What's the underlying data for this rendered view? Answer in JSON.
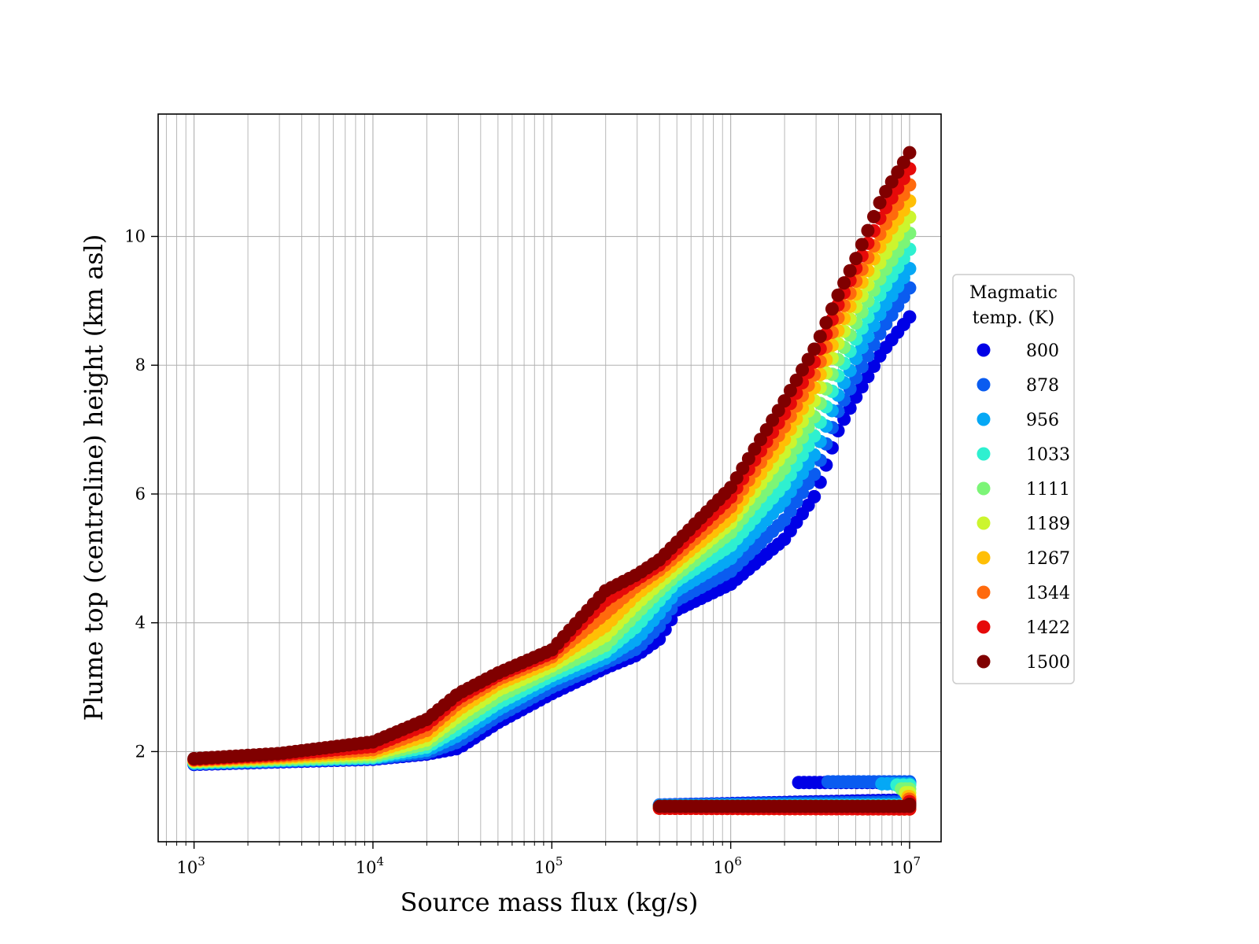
{
  "chart_data": {
    "type": "scatter",
    "title": "",
    "xlabel": "Source mass flux (kg/s)",
    "ylabel": "Plume top (centreline) height (km asl)",
    "xscale": "log",
    "xlim": [
      630,
      15000000
    ],
    "ylim": [
      0.6,
      11.9
    ],
    "grid": true,
    "x_ticks": [
      {
        "value": 1000,
        "base": "10",
        "exp": "3"
      },
      {
        "value": 10000,
        "base": "10",
        "exp": "4"
      },
      {
        "value": 100000,
        "base": "10",
        "exp": "5"
      },
      {
        "value": 1000000,
        "base": "10",
        "exp": "6"
      },
      {
        "value": 10000000,
        "base": "10",
        "exp": "7"
      }
    ],
    "y_ticks": [
      2,
      4,
      6,
      8,
      10
    ],
    "legend": {
      "title_line1": "Magmatic",
      "title_line2": "temp. (K)",
      "placement": "right-outside"
    },
    "lower_branch_x": [
      400000,
      10000000
    ],
    "series": [
      {
        "name": "800",
        "color": "#0000e6",
        "points": [
          [
            1000,
            1.8
          ],
          [
            3000,
            1.84
          ],
          [
            10000,
            1.88
          ],
          [
            20000,
            1.96
          ],
          [
            30000,
            2.05
          ],
          [
            50000,
            2.45
          ],
          [
            100000,
            2.9
          ],
          [
            200000,
            3.3
          ],
          [
            300000,
            3.5
          ],
          [
            400000,
            3.75
          ],
          [
            500000,
            4.2
          ],
          [
            1000000,
            4.6
          ],
          [
            2000000,
            5.3
          ],
          [
            3000000,
            6.0
          ],
          [
            4000000,
            7.0
          ],
          [
            5000000,
            7.5
          ],
          [
            7000000,
            8.2
          ],
          [
            10000000,
            8.75
          ]
        ],
        "lower_y": [
          1.17,
          1.25
        ],
        "lower_upper_start": 2400000,
        "lower_upper_y": 1.52
      },
      {
        "name": "878",
        "color": "#0a5cf0",
        "points": [
          [
            1000,
            1.81
          ],
          [
            3000,
            1.85
          ],
          [
            10000,
            1.89
          ],
          [
            20000,
            1.98
          ],
          [
            30000,
            2.15
          ],
          [
            50000,
            2.55
          ],
          [
            100000,
            3.0
          ],
          [
            200000,
            3.38
          ],
          [
            300000,
            3.6
          ],
          [
            400000,
            3.95
          ],
          [
            500000,
            4.35
          ],
          [
            1000000,
            4.8
          ],
          [
            2000000,
            5.6
          ],
          [
            3000000,
            6.35
          ],
          [
            4000000,
            7.3
          ],
          [
            5000000,
            7.8
          ],
          [
            7000000,
            8.55
          ],
          [
            10000000,
            9.2
          ]
        ],
        "lower_y": [
          1.17,
          1.22
        ],
        "lower_upper_start": 3500000,
        "lower_upper_y": 1.53
      },
      {
        "name": "956",
        "color": "#05a8f5",
        "points": [
          [
            1000,
            1.82
          ],
          [
            3000,
            1.86
          ],
          [
            10000,
            1.9
          ],
          [
            20000,
            2.02
          ],
          [
            30000,
            2.25
          ],
          [
            50000,
            2.65
          ],
          [
            100000,
            3.1
          ],
          [
            200000,
            3.45
          ],
          [
            300000,
            3.75
          ],
          [
            400000,
            4.15
          ],
          [
            500000,
            4.5
          ],
          [
            1000000,
            5.0
          ],
          [
            2000000,
            5.9
          ],
          [
            3000000,
            6.65
          ],
          [
            4000000,
            7.55
          ],
          [
            5000000,
            8.1
          ],
          [
            7000000,
            8.85
          ],
          [
            10000000,
            9.5
          ]
        ],
        "lower_y": [
          1.16,
          1.18
        ],
        "lower_upper_start": 7000000,
        "lower_upper_y": 1.5
      },
      {
        "name": "1033",
        "color": "#2ef0d0",
        "points": [
          [
            1000,
            1.83
          ],
          [
            3000,
            1.87
          ],
          [
            10000,
            1.91
          ],
          [
            20000,
            2.07
          ],
          [
            30000,
            2.35
          ],
          [
            50000,
            2.75
          ],
          [
            100000,
            3.18
          ],
          [
            200000,
            3.55
          ],
          [
            300000,
            3.95
          ],
          [
            400000,
            4.35
          ],
          [
            500000,
            4.65
          ],
          [
            1000000,
            5.2
          ],
          [
            2000000,
            6.15
          ],
          [
            3000000,
            6.95
          ],
          [
            4000000,
            7.85
          ],
          [
            5000000,
            8.4
          ],
          [
            7000000,
            9.15
          ],
          [
            10000000,
            9.8
          ]
        ],
        "lower_y": [
          1.15,
          1.16
        ],
        "lower_upper_start": 8500000,
        "lower_upper_y": 1.48
      },
      {
        "name": "1111",
        "color": "#7cf577",
        "points": [
          [
            1000,
            1.84
          ],
          [
            3000,
            1.88
          ],
          [
            10000,
            1.93
          ],
          [
            20000,
            2.12
          ],
          [
            30000,
            2.45
          ],
          [
            50000,
            2.85
          ],
          [
            100000,
            3.26
          ],
          [
            200000,
            3.65
          ],
          [
            300000,
            4.15
          ],
          [
            400000,
            4.5
          ],
          [
            500000,
            4.75
          ],
          [
            1000000,
            5.4
          ],
          [
            2000000,
            6.4
          ],
          [
            3000000,
            7.25
          ],
          [
            4000000,
            8.1
          ],
          [
            5000000,
            8.65
          ],
          [
            7000000,
            9.4
          ],
          [
            10000000,
            10.05
          ]
        ],
        "lower_y": [
          1.14,
          1.14
        ],
        "lower_upper_start": 9000000,
        "lower_upper_y": 1.42
      },
      {
        "name": "1189",
        "color": "#ccf52e",
        "points": [
          [
            1000,
            1.85
          ],
          [
            3000,
            1.9
          ],
          [
            10000,
            1.96
          ],
          [
            20000,
            2.18
          ],
          [
            30000,
            2.55
          ],
          [
            50000,
            2.95
          ],
          [
            100000,
            3.33
          ],
          [
            200000,
            3.8
          ],
          [
            300000,
            4.3
          ],
          [
            400000,
            4.62
          ],
          [
            500000,
            4.85
          ],
          [
            1000000,
            5.55
          ],
          [
            2000000,
            6.65
          ],
          [
            3000000,
            7.5
          ],
          [
            4000000,
            8.35
          ],
          [
            5000000,
            8.9
          ],
          [
            7000000,
            9.65
          ],
          [
            10000000,
            10.3
          ]
        ],
        "lower_y": [
          1.13,
          1.12
        ],
        "lower_upper_start": 9500000,
        "lower_upper_y": 1.36
      },
      {
        "name": "1267",
        "color": "#ffbf05",
        "points": [
          [
            1000,
            1.86
          ],
          [
            3000,
            1.91
          ],
          [
            10000,
            1.99
          ],
          [
            20000,
            2.25
          ],
          [
            30000,
            2.65
          ],
          [
            50000,
            3.05
          ],
          [
            100000,
            3.4
          ],
          [
            200000,
            3.95
          ],
          [
            300000,
            4.45
          ],
          [
            400000,
            4.72
          ],
          [
            500000,
            4.95
          ],
          [
            1000000,
            5.65
          ],
          [
            2000000,
            6.85
          ],
          [
            3000000,
            7.7
          ],
          [
            4000000,
            8.55
          ],
          [
            5000000,
            9.1
          ],
          [
            7000000,
            9.9
          ],
          [
            10000000,
            10.55
          ]
        ],
        "lower_y": [
          1.12,
          1.11
        ],
        "lower_upper_start": 9800000,
        "lower_upper_y": 1.3
      },
      {
        "name": "1344",
        "color": "#ff6a0d",
        "points": [
          [
            1000,
            1.87
          ],
          [
            3000,
            1.93
          ],
          [
            10000,
            2.03
          ],
          [
            20000,
            2.33
          ],
          [
            30000,
            2.75
          ],
          [
            50000,
            3.12
          ],
          [
            100000,
            3.47
          ],
          [
            200000,
            4.15
          ],
          [
            300000,
            4.58
          ],
          [
            400000,
            4.82
          ],
          [
            500000,
            5.05
          ],
          [
            1000000,
            5.8
          ],
          [
            2000000,
            7.05
          ],
          [
            3000000,
            7.9
          ],
          [
            4000000,
            8.75
          ],
          [
            5000000,
            9.3
          ],
          [
            7000000,
            10.1
          ],
          [
            10000000,
            10.8
          ]
        ],
        "lower_y": [
          1.12,
          1.11
        ],
        "lower_upper_start": 9900000,
        "lower_upper_y": 1.26
      },
      {
        "name": "1422",
        "color": "#e60a0a",
        "points": [
          [
            1000,
            1.88
          ],
          [
            3000,
            1.95
          ],
          [
            10000,
            2.08
          ],
          [
            20000,
            2.42
          ],
          [
            30000,
            2.83
          ],
          [
            50000,
            3.18
          ],
          [
            100000,
            3.53
          ],
          [
            200000,
            4.35
          ],
          [
            300000,
            4.68
          ],
          [
            400000,
            4.9
          ],
          [
            500000,
            5.15
          ],
          [
            1000000,
            5.95
          ],
          [
            2000000,
            7.25
          ],
          [
            3000000,
            8.1
          ],
          [
            4000000,
            8.95
          ],
          [
            5000000,
            9.5
          ],
          [
            7000000,
            10.35
          ],
          [
            10000000,
            11.05
          ]
        ],
        "lower_y": [
          1.12,
          1.11
        ],
        "lower_upper_start": 9950000,
        "lower_upper_y": 1.22
      },
      {
        "name": "1500",
        "color": "#800000",
        "points": [
          [
            1000,
            1.89
          ],
          [
            3000,
            1.97
          ],
          [
            10000,
            2.15
          ],
          [
            20000,
            2.5
          ],
          [
            30000,
            2.9
          ],
          [
            50000,
            3.22
          ],
          [
            100000,
            3.58
          ],
          [
            200000,
            4.5
          ],
          [
            300000,
            4.75
          ],
          [
            400000,
            4.98
          ],
          [
            500000,
            5.25
          ],
          [
            1000000,
            6.1
          ],
          [
            2000000,
            7.45
          ],
          [
            3000000,
            8.3
          ],
          [
            4000000,
            9.1
          ],
          [
            5000000,
            9.65
          ],
          [
            7000000,
            10.6
          ],
          [
            10000000,
            11.3
          ]
        ],
        "lower_y": [
          1.15,
          1.15
        ],
        "lower_upper_start": 10000000,
        "lower_upper_y": 1.18
      }
    ]
  }
}
